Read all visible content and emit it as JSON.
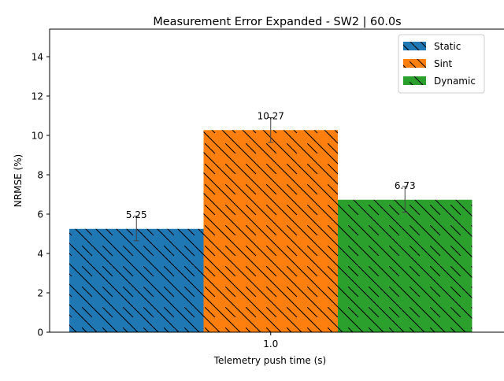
{
  "chart_data": {
    "type": "bar",
    "title": "Measurement Error Expanded - SW2 | 60.0s",
    "xlabel": "Telemetry push time (s)",
    "ylabel": "NRMSE (%)",
    "categories": [
      "1.0"
    ],
    "ylim": [
      0,
      15.4
    ],
    "yticks": [
      0,
      2,
      4,
      6,
      8,
      10,
      12,
      14
    ],
    "grid": false,
    "legend_position": "top-right",
    "series": [
      {
        "name": "Static",
        "values": [
          5.25
        ],
        "error_low": [
          4.65
        ],
        "error_high": [
          5.9
        ],
        "label": "5.25",
        "color": "#1f77b4",
        "hatch": "backslash"
      },
      {
        "name": "Sint",
        "values": [
          10.27
        ],
        "error_low": [
          9.65
        ],
        "error_high": [
          10.9
        ],
        "label": "10.27",
        "color": "#ff7f0e",
        "hatch": "backslash"
      },
      {
        "name": "Dynamic",
        "values": [
          6.73
        ],
        "error_low": [
          6.1
        ],
        "error_high": [
          7.4
        ],
        "label": "6.73",
        "color": "#2ca02c",
        "hatch": "backslash"
      }
    ]
  }
}
